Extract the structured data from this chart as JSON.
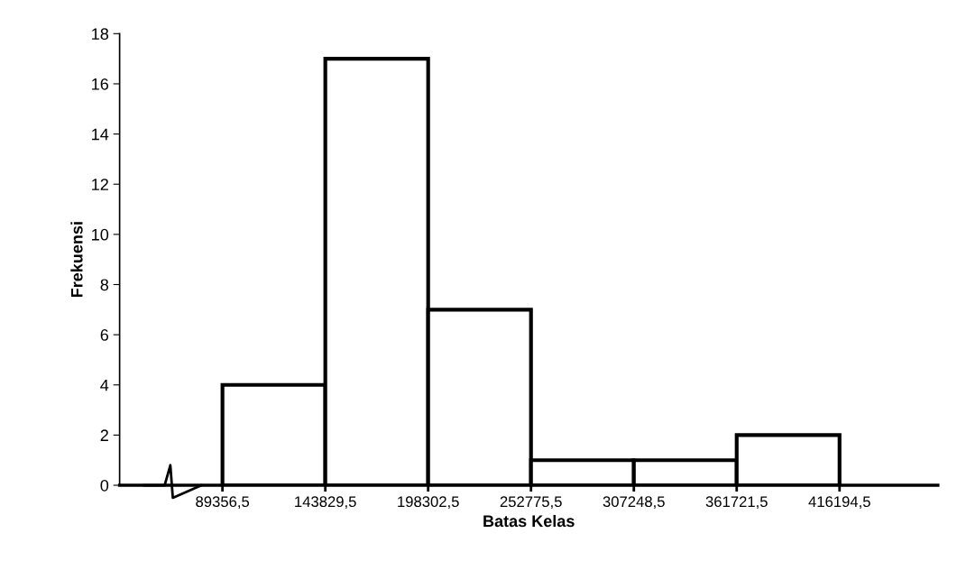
{
  "chart_data": {
    "type": "histogram",
    "xlabel": "Batas Kelas",
    "ylabel": "Frekuensi",
    "bins": [
      89356.5,
      143829.5,
      198302.5,
      252775.5,
      307248.5,
      361721.5,
      416194.5
    ],
    "values": [
      4,
      17,
      7,
      1,
      1,
      2
    ],
    "color": "#000000",
    "xlim": [
      34883.5,
      468271
    ],
    "xticks": [
      {
        "value": 89356.5,
        "label": "89356,5"
      },
      {
        "value": 143829.5,
        "label": "143829,5"
      },
      {
        "value": 198302.5,
        "label": "198302,5"
      },
      {
        "value": 252775.5,
        "label": "252775,5"
      },
      {
        "value": 307248.5,
        "label": "307248,5"
      },
      {
        "value": 361721.5,
        "label": "361721,5"
      },
      {
        "value": 416194.5,
        "label": "416194,5"
      }
    ],
    "ylim": [
      0,
      18
    ],
    "yticks": [
      0,
      2,
      4,
      6,
      8,
      10,
      12,
      14,
      16,
      18
    ],
    "grid": false,
    "legend": false
  }
}
